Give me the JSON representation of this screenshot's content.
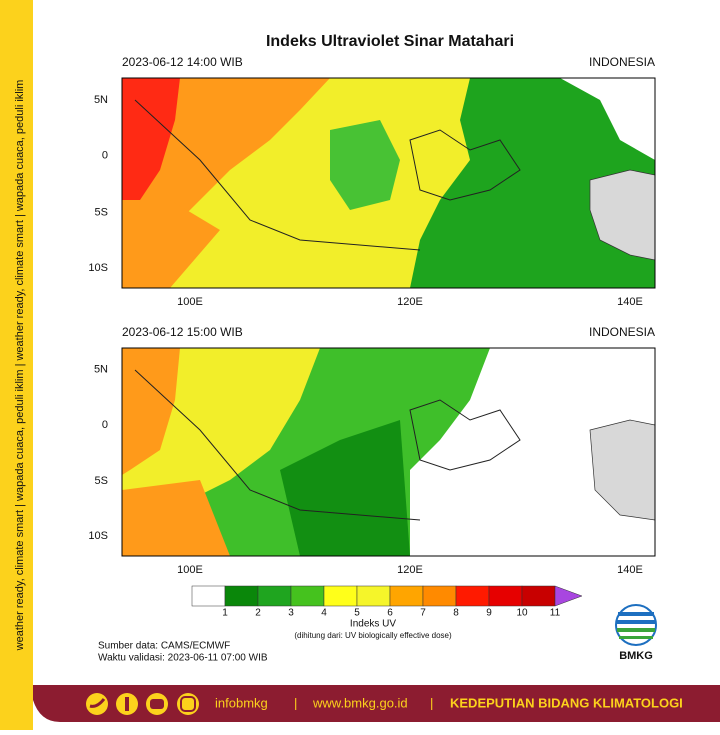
{
  "side_banner": "weather ready, climate smart | wapada cuaca, peduli iklim | weather ready, climate smart | wapada cuaca, peduli iklim",
  "title": "Indeks Ultraviolet Sinar Matahari",
  "panels": [
    {
      "time": "2023-06-12  14:00 WIB",
      "region": "INDONESIA"
    },
    {
      "time": "2023-06-12  15:00 WIB",
      "region": "INDONESIA"
    }
  ],
  "lat_labels": [
    "5N",
    "0",
    "5S",
    "10S"
  ],
  "lon_labels": [
    "100E",
    "120E",
    "140E"
  ],
  "colorbar": {
    "ticks": [
      1,
      2,
      3,
      4,
      5,
      6,
      7,
      8,
      9,
      10,
      11
    ],
    "colors": [
      "#ffffff",
      "#0a870a",
      "#1fa51f",
      "#45c21e",
      "#ffff1a",
      "#f5f52a",
      "#ffa500",
      "#ff8a00",
      "#ff1a00",
      "#e60000",
      "#c80000",
      "#a846e0"
    ],
    "label": "Indeks UV",
    "note": "(dihitung dari: UV biologically effective dose)"
  },
  "source": "Sumber data: CAMS/ECMWF",
  "validity": "Waktu validasi: 2023-06-11 07:00 WIB",
  "logo": "BMKG",
  "footer": {
    "handle": "infobmkg",
    "separator": "|",
    "website": "www.bmkg.go.id",
    "department": "KEDEPUTIAN BIDANG KLIMATOLOGI"
  }
}
